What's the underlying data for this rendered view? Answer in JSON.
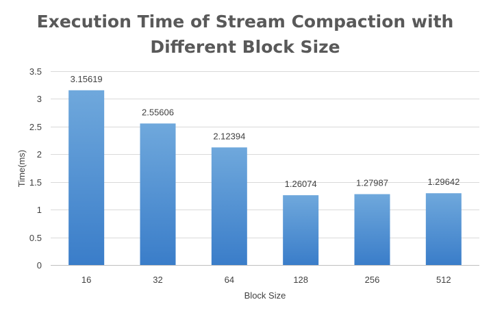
{
  "chart_data": {
    "type": "bar",
    "title_lines": [
      "Execution Time of Stream Compaction with",
      "Different Block Size"
    ],
    "xlabel": "Block Size",
    "ylabel": "Time(ms)",
    "categories": [
      "16",
      "32",
      "64",
      "128",
      "256",
      "512"
    ],
    "values": [
      3.15619,
      2.55606,
      2.12394,
      1.26074,
      1.27987,
      1.29642
    ],
    "data_labels": [
      "3.15619",
      "2.55606",
      "2.12394",
      "1.26074",
      "1.27987",
      "1.29642"
    ],
    "ylim": [
      0,
      3.5
    ],
    "y_ticks": [
      0,
      0.5,
      1,
      1.5,
      2,
      2.5,
      3,
      3.5
    ],
    "y_tick_labels": [
      "0",
      "0.5",
      "1",
      "1.5",
      "2",
      "2.5",
      "3",
      "3.5"
    ],
    "grid": true,
    "legend": "none",
    "colors": {
      "bar_top": "#6fa8dc",
      "bar_bottom": "#3a7dc9",
      "title": "#595959",
      "text": "#404040",
      "grid": "#d9d9d9",
      "axis": "#bfbfbf"
    }
  }
}
